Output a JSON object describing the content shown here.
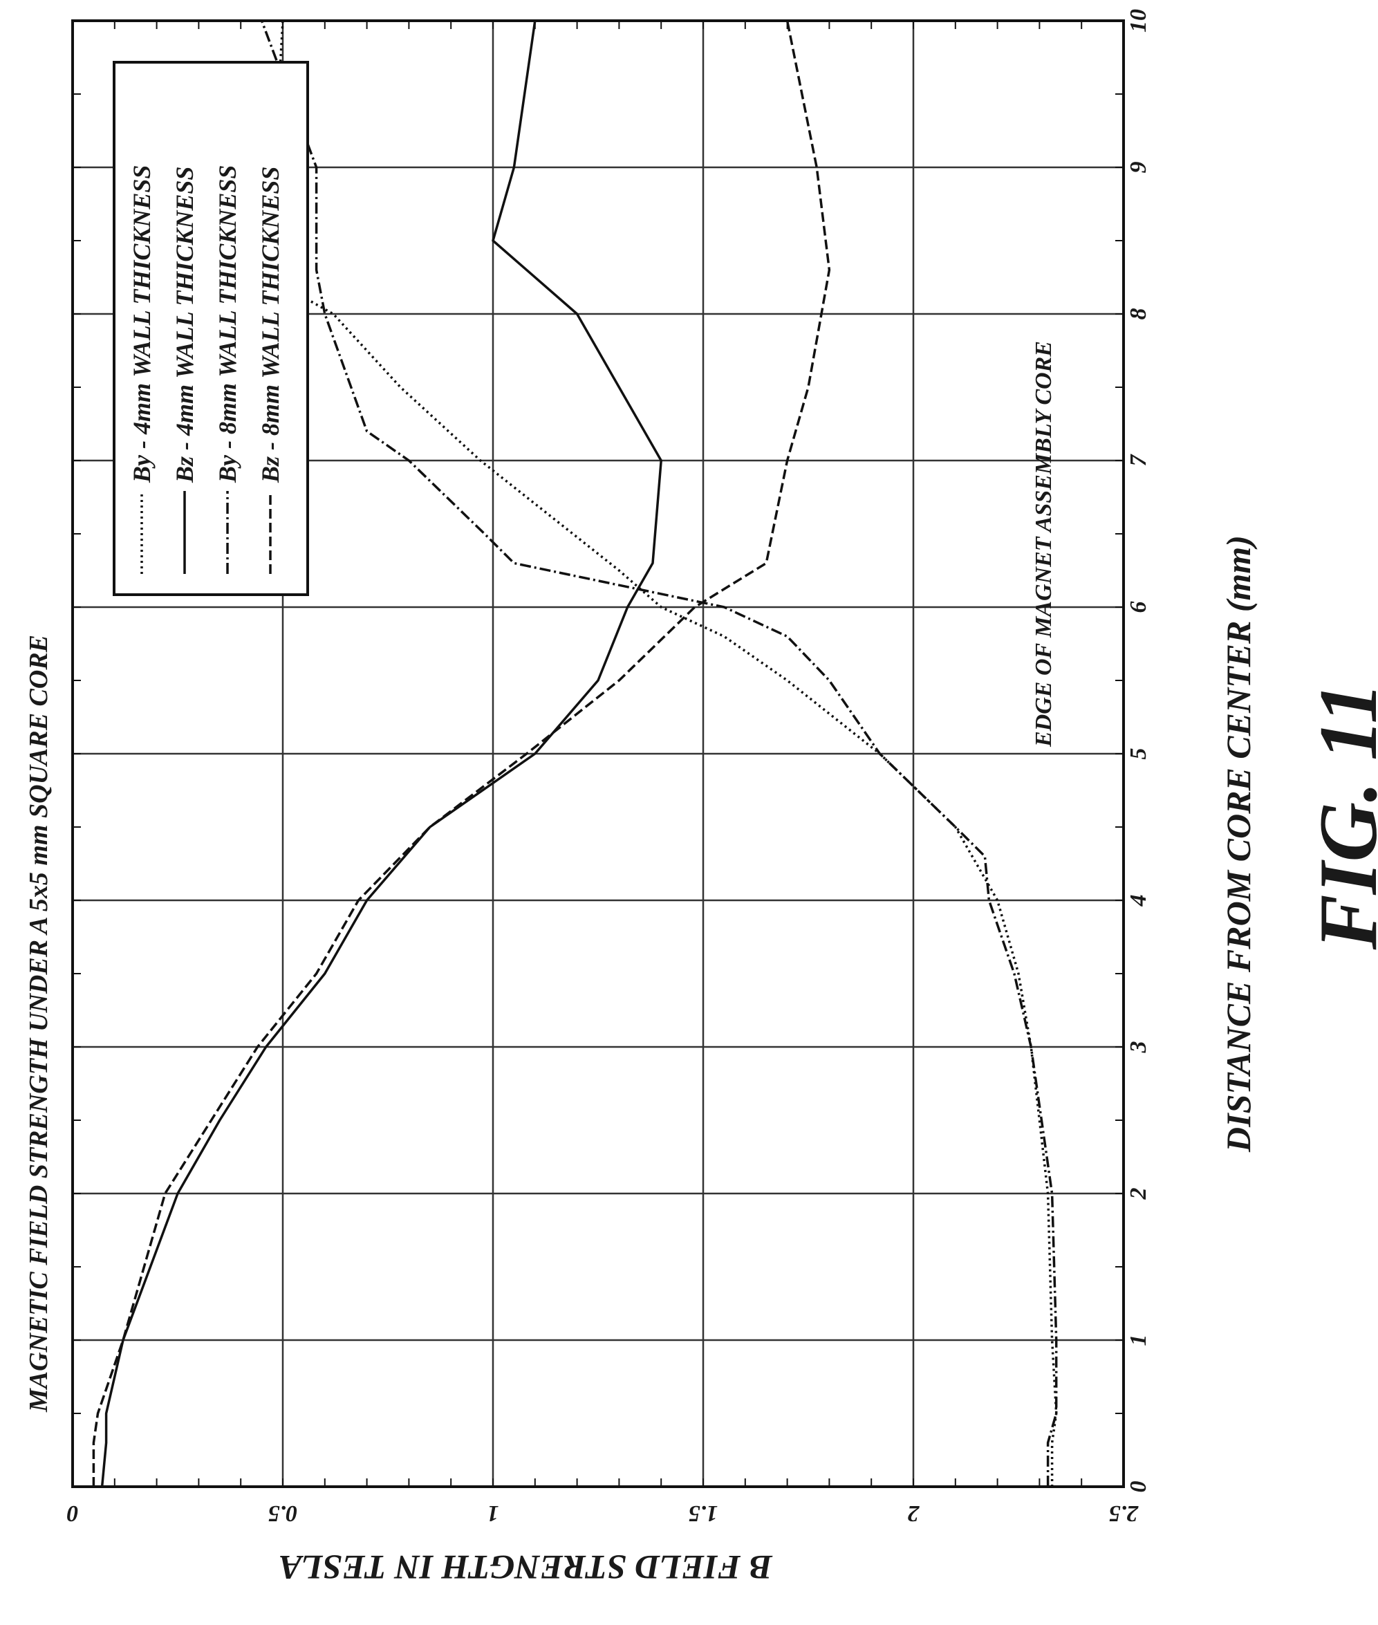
{
  "chart_data": {
    "type": "line",
    "title": "MAGNETIC FIELD STRENGTH UNDER A 5x5 mm SQUARE CORE",
    "xlabel": "DISTANCE FROM CORE CENTER (mm)",
    "ylabel": "B FIELD STRENGTH IN TESLA",
    "figure_label": "FIG. 11",
    "annotation": "EDGE OF MAGNET ASSEMBLY CORE",
    "xlim": [
      0,
      10
    ],
    "ylim": [
      0,
      2.5
    ],
    "x_ticks": [
      "0",
      "1",
      "2",
      "3",
      "4",
      "5",
      "6",
      "7",
      "8",
      "9",
      "10"
    ],
    "y_ticks": [
      "0",
      "0.5",
      "1",
      "1.5",
      "2",
      "2.5"
    ],
    "grid": true,
    "legend_position": "top-right",
    "series": [
      {
        "name": "By - 4mm WALL THICKNESS",
        "style": "dotted",
        "points": [
          [
            0,
            2.33
          ],
          [
            0.3,
            2.33
          ],
          [
            0.5,
            2.34
          ],
          [
            1,
            2.33
          ],
          [
            2,
            2.32
          ],
          [
            3,
            2.28
          ],
          [
            3.5,
            2.25
          ],
          [
            4,
            2.2
          ],
          [
            4.5,
            2.1
          ],
          [
            5,
            1.92
          ],
          [
            5.5,
            1.7
          ],
          [
            5.8,
            1.55
          ],
          [
            6,
            1.4
          ],
          [
            6.25,
            1.3
          ],
          [
            7,
            0.97
          ],
          [
            7.5,
            0.78
          ],
          [
            8,
            0.62
          ],
          [
            8.5,
            0.31
          ],
          [
            8.8,
            0.45
          ],
          [
            9,
            0.48
          ],
          [
            10,
            0.5
          ]
        ]
      },
      {
        "name": "Bz - 4mm WALL THICKNESS",
        "style": "solid",
        "points": [
          [
            0,
            0.07
          ],
          [
            0.3,
            0.08
          ],
          [
            0.5,
            0.08
          ],
          [
            1,
            0.12
          ],
          [
            2,
            0.25
          ],
          [
            2.5,
            0.35
          ],
          [
            3,
            0.46
          ],
          [
            3.5,
            0.6
          ],
          [
            4,
            0.7
          ],
          [
            4.5,
            0.85
          ],
          [
            5,
            1.1
          ],
          [
            5.5,
            1.25
          ],
          [
            6,
            1.32
          ],
          [
            6.3,
            1.38
          ],
          [
            7,
            1.4
          ],
          [
            7.5,
            1.3
          ],
          [
            8,
            1.2
          ],
          [
            8.5,
            1.0
          ],
          [
            9,
            1.05
          ],
          [
            10,
            1.1
          ]
        ]
      },
      {
        "name": "By - 8mm WALL THICKNESS",
        "style": "dashdot",
        "points": [
          [
            0,
            2.32
          ],
          [
            0.3,
            2.32
          ],
          [
            0.5,
            2.34
          ],
          [
            1,
            2.34
          ],
          [
            2,
            2.33
          ],
          [
            3,
            2.28
          ],
          [
            3.5,
            2.24
          ],
          [
            4,
            2.18
          ],
          [
            4.3,
            2.17
          ],
          [
            4.5,
            2.1
          ],
          [
            5,
            1.92
          ],
          [
            5.5,
            1.8
          ],
          [
            5.8,
            1.7
          ],
          [
            6,
            1.55
          ],
          [
            6.3,
            1.05
          ],
          [
            6.5,
            0.98
          ],
          [
            7,
            0.8
          ],
          [
            7.2,
            0.7
          ],
          [
            8,
            0.6
          ],
          [
            8.3,
            0.58
          ],
          [
            9,
            0.58
          ],
          [
            10,
            0.45
          ]
        ]
      },
      {
        "name": "Bz - 8mm WALL THICKNESS",
        "style": "dashed",
        "points": [
          [
            0,
            0.05
          ],
          [
            0.3,
            0.05
          ],
          [
            0.5,
            0.06
          ],
          [
            1,
            0.12
          ],
          [
            2,
            0.22
          ],
          [
            2.5,
            0.33
          ],
          [
            3,
            0.44
          ],
          [
            3.5,
            0.58
          ],
          [
            4,
            0.68
          ],
          [
            4.5,
            0.85
          ],
          [
            5,
            1.08
          ],
          [
            5.5,
            1.3
          ],
          [
            6,
            1.48
          ],
          [
            6.3,
            1.65
          ],
          [
            7,
            1.7
          ],
          [
            7.5,
            1.75
          ],
          [
            8.3,
            1.8
          ],
          [
            9,
            1.77
          ],
          [
            10,
            1.7
          ]
        ]
      }
    ]
  }
}
